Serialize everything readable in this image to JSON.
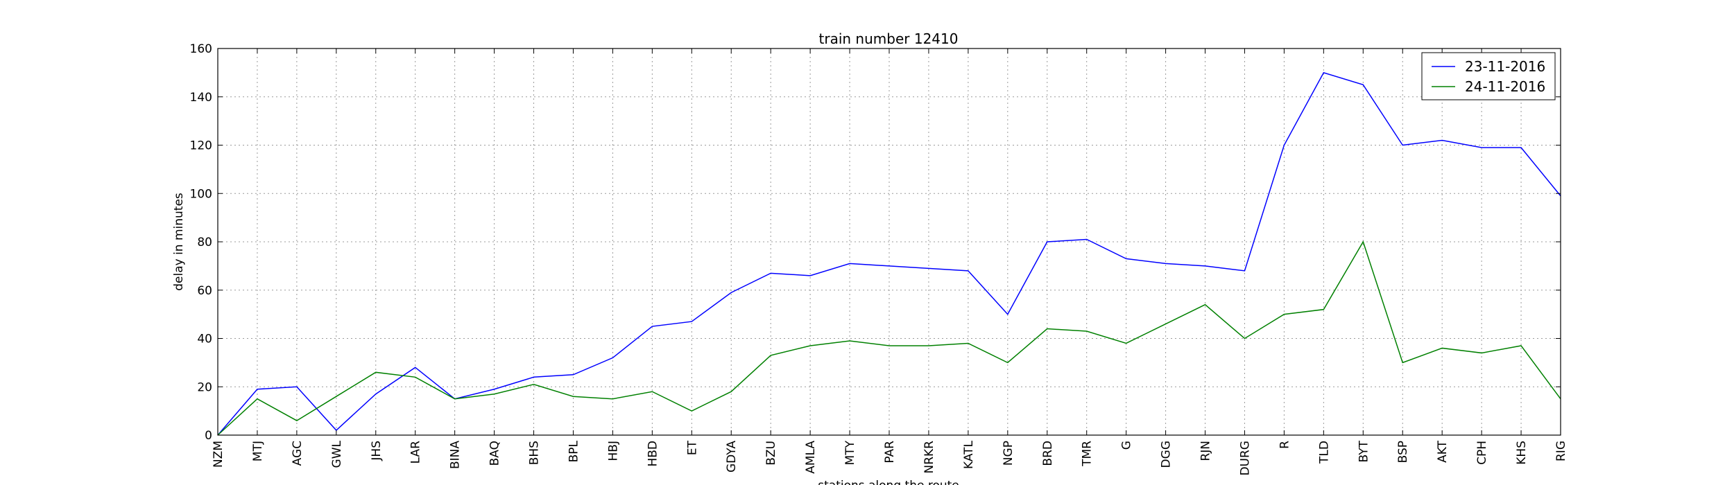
{
  "chart_data": {
    "type": "line",
    "title": "train number 12410",
    "xlabel": "stations along the route",
    "ylabel": "delay in minutes",
    "ylim": [
      0,
      160
    ],
    "yticks": [
      0,
      20,
      40,
      60,
      80,
      100,
      120,
      140,
      160
    ],
    "grid": true,
    "legend_position": "top-right",
    "categories": [
      "NZM",
      "MTJ",
      "AGC",
      "GWL",
      "JHS",
      "LAR",
      "BINA",
      "BAQ",
      "BHS",
      "BPL",
      "HBJ",
      "HBD",
      "ET",
      "GDYA",
      "BZU",
      "AMLA",
      "MTY",
      "PAR",
      "NRKR",
      "KATL",
      "NGP",
      "BRD",
      "TMR",
      "G",
      "DGG",
      "RJN",
      "DURG",
      "R",
      "TLD",
      "BYT",
      "BSP",
      "AKT",
      "CPH",
      "KHS",
      "RIG"
    ],
    "series": [
      {
        "name": "23-11-2016",
        "color": "#0000ff",
        "values": [
          0,
          19,
          20,
          2,
          17,
          28,
          15,
          19,
          24,
          25,
          32,
          45,
          47,
          59,
          67,
          66,
          71,
          70,
          69,
          68,
          50,
          80,
          81,
          73,
          71,
          70,
          68,
          120,
          150,
          145,
          120,
          122,
          119,
          119,
          99
        ]
      },
      {
        "name": "24-11-2016",
        "color": "#008000",
        "values": [
          0,
          15,
          6,
          16,
          26,
          24,
          15,
          17,
          21,
          16,
          15,
          18,
          10,
          18,
          33,
          37,
          39,
          37,
          37,
          38,
          30,
          44,
          43,
          38,
          46,
          54,
          40,
          50,
          52,
          80,
          30,
          36,
          34,
          37,
          15
        ]
      }
    ]
  }
}
